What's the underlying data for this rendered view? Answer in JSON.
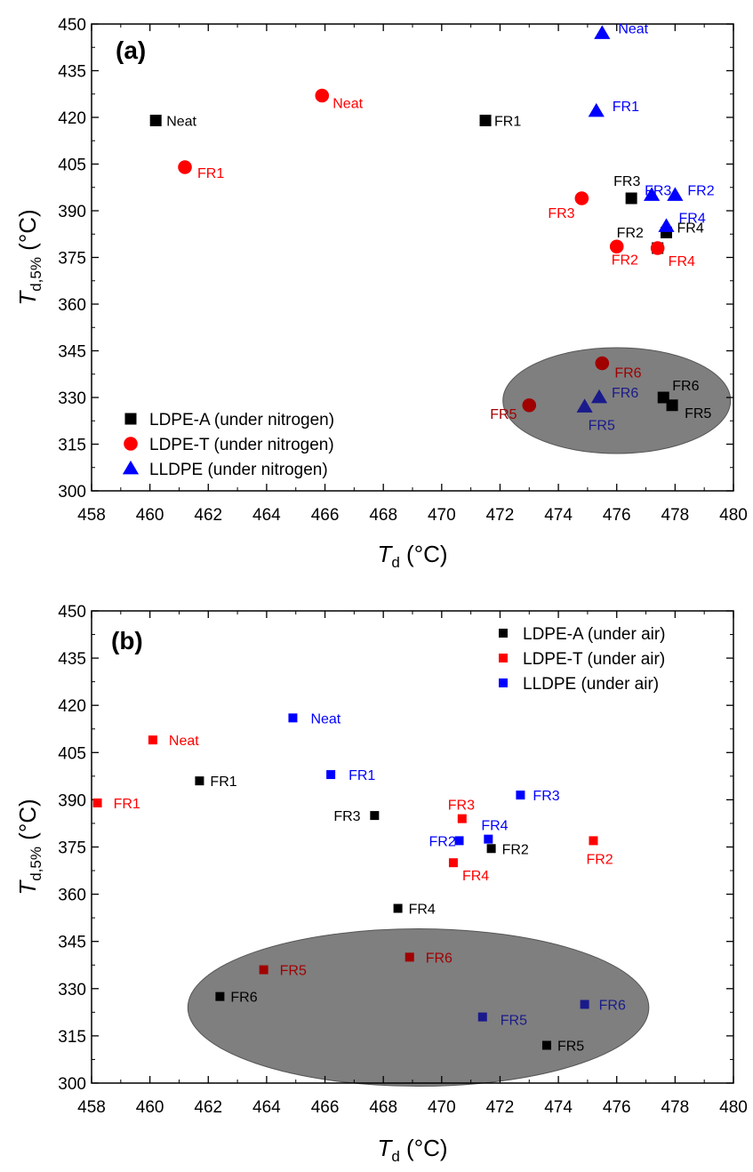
{
  "chart_data": [
    {
      "type": "scatter",
      "panel_label": "(a)",
      "xlabel_main": "T",
      "xlabel_sub": "d",
      "xlabel_unit": " (°C)",
      "ylabel_main": "T",
      "ylabel_sub": "d,5%",
      "ylabel_unit": " (°C)",
      "xlim": [
        458,
        480
      ],
      "ylim": [
        300,
        450
      ],
      "xticks": [
        458,
        460,
        462,
        464,
        466,
        468,
        470,
        472,
        474,
        476,
        478,
        480
      ],
      "yticks": [
        300,
        315,
        330,
        345,
        360,
        375,
        390,
        405,
        420,
        435,
        450
      ],
      "legend_position": "lower-left",
      "highlight_ellipse": {
        "cx": 476,
        "cy": 329,
        "rx": 3.9,
        "ry": 17,
        "color": "#7f7f7f"
      },
      "series": [
        {
          "name": "LDPE-A (under nitrogen)",
          "marker": "square",
          "color": "#000000",
          "points": [
            {
              "x": 460.2,
              "y": 419,
              "label": "Neat"
            },
            {
              "x": 471.5,
              "y": 419,
              "label": "FR1"
            },
            {
              "x": 477.4,
              "y": 378,
              "label": "FR2"
            },
            {
              "x": 476.5,
              "y": 394,
              "label": "FR3"
            },
            {
              "x": 477.7,
              "y": 383,
              "label": "FR4"
            },
            {
              "x": 477.9,
              "y": 327.5,
              "label": "FR5"
            },
            {
              "x": 477.6,
              "y": 330,
              "label": "FR6"
            }
          ]
        },
        {
          "name": "LDPE-T (under nitrogen)",
          "marker": "circle",
          "color": "#ff0000",
          "points": [
            {
              "x": 465.9,
              "y": 427,
              "label": "Neat"
            },
            {
              "x": 461.2,
              "y": 404,
              "label": "FR1"
            },
            {
              "x": 476.0,
              "y": 378.5,
              "label": "FR2"
            },
            {
              "x": 474.8,
              "y": 394,
              "label": "FR3"
            },
            {
              "x": 477.4,
              "y": 378,
              "label": "FR4"
            },
            {
              "x": 473.0,
              "y": 327.5,
              "label": "FR5"
            },
            {
              "x": 475.5,
              "y": 341,
              "label": "FR6"
            }
          ]
        },
        {
          "name": "LLDPE (under nitrogen)",
          "marker": "triangle",
          "color": "#0000ff",
          "points": [
            {
              "x": 475.5,
              "y": 447,
              "label": "Neat"
            },
            {
              "x": 475.3,
              "y": 422,
              "label": "FR1"
            },
            {
              "x": 478.0,
              "y": 395,
              "label": "FR2"
            },
            {
              "x": 477.2,
              "y": 395,
              "label": "FR3"
            },
            {
              "x": 477.7,
              "y": 385,
              "label": "FR4"
            },
            {
              "x": 474.9,
              "y": 327,
              "label": "FR5"
            },
            {
              "x": 475.4,
              "y": 330,
              "label": "FR6"
            }
          ]
        }
      ]
    },
    {
      "type": "scatter",
      "panel_label": "(b)",
      "xlabel_main": "T",
      "xlabel_sub": "d",
      "xlabel_unit": " (°C)",
      "ylabel_main": "T",
      "ylabel_sub": "d,5%",
      "ylabel_unit": " (°C)",
      "xlim": [
        458,
        480
      ],
      "ylim": [
        300,
        450
      ],
      "xticks": [
        458,
        460,
        462,
        464,
        466,
        468,
        470,
        472,
        474,
        476,
        478,
        480
      ],
      "yticks": [
        300,
        315,
        330,
        345,
        360,
        375,
        390,
        405,
        420,
        435,
        450
      ],
      "legend_position": "top-right",
      "highlight_ellipse": {
        "cx": 469.2,
        "cy": 324,
        "rx": 7.9,
        "ry": 25,
        "color": "#7f7f7f"
      },
      "series": [
        {
          "name": "LDPE-A (under air)",
          "marker": "square",
          "color": "#000000",
          "points": [
            {
              "x": 461.7,
              "y": 396,
              "label": "FR1"
            },
            {
              "x": 471.7,
              "y": 374.5,
              "label": "FR2"
            },
            {
              "x": 467.7,
              "y": 385,
              "label": "FR3"
            },
            {
              "x": 468.5,
              "y": 355.5,
              "label": "FR4"
            },
            {
              "x": 473.6,
              "y": 312,
              "label": "FR5"
            },
            {
              "x": 462.4,
              "y": 327.5,
              "label": "FR6"
            }
          ]
        },
        {
          "name": "LDPE-T (under air)",
          "marker": "square",
          "color": "#ff0000",
          "points": [
            {
              "x": 460.1,
              "y": 409,
              "label": "Neat"
            },
            {
              "x": 458.2,
              "y": 389,
              "label": "FR1"
            },
            {
              "x": 475.2,
              "y": 377,
              "label": "FR2"
            },
            {
              "x": 470.7,
              "y": 384,
              "label": "FR3"
            },
            {
              "x": 470.4,
              "y": 370,
              "label": "FR4"
            },
            {
              "x": 463.9,
              "y": 336,
              "label": "FR5"
            },
            {
              "x": 468.9,
              "y": 340,
              "label": "FR6"
            }
          ]
        },
        {
          "name": "LLDPE (under air)",
          "marker": "square",
          "color": "#0000ff",
          "points": [
            {
              "x": 464.9,
              "y": 416,
              "label": "Neat"
            },
            {
              "x": 466.2,
              "y": 398,
              "label": "FR1"
            },
            {
              "x": 470.6,
              "y": 377,
              "label": "FR2"
            },
            {
              "x": 472.7,
              "y": 391.5,
              "label": "FR3"
            },
            {
              "x": 471.6,
              "y": 377.5,
              "label": "FR4"
            },
            {
              "x": 471.4,
              "y": 321,
              "label": "FR5"
            },
            {
              "x": 474.9,
              "y": 325,
              "label": "FR6"
            }
          ]
        }
      ]
    }
  ]
}
